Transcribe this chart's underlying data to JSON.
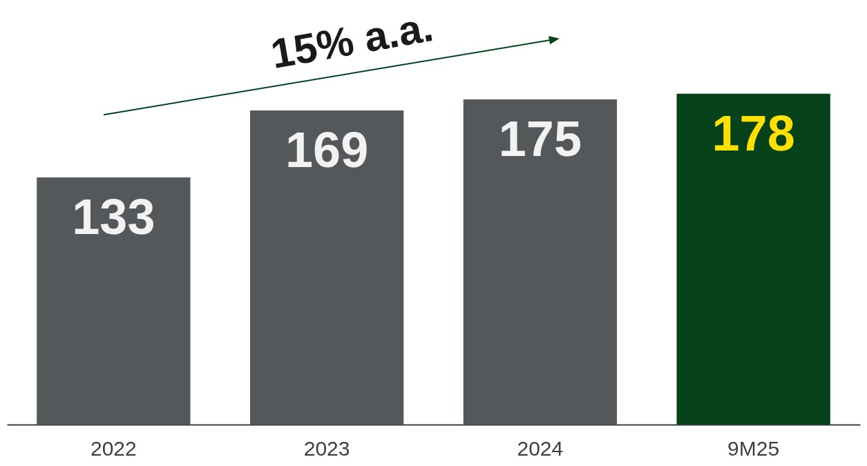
{
  "chart_data": {
    "type": "bar",
    "categories": [
      "2022",
      "2023",
      "2024",
      "9M25"
    ],
    "values": [
      133,
      169,
      175,
      178
    ],
    "colors": [
      "#55585b",
      "#55585b",
      "#55585b",
      "#054219"
    ],
    "data_labels": true,
    "annotations": [
      "15% a.a."
    ]
  }
}
